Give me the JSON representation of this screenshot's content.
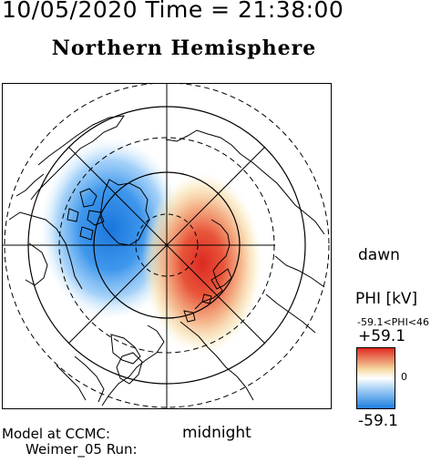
{
  "header": {
    "date_time": "10/05/2020 Time = 21:38:00",
    "title": "Northern Hemisphere"
  },
  "labels": {
    "dawn": "dawn",
    "midnight": "midnight",
    "model_line1": "Model at CCMC:",
    "model_line2": "Weimer_05 Run:"
  },
  "colorbar": {
    "title": "PHI [kV]",
    "range_text": "-59.1<PHI<46",
    "max_label": "+59.1",
    "mid_label": "0",
    "min_label": "-59.1",
    "colors": {
      "negative": "#1e7fe0",
      "zero": "#ffffff",
      "positive": "#e02a20",
      "mid_positive": "#f5d9a0"
    }
  },
  "map": {
    "projection": "polar",
    "hemisphere": "north",
    "potential_cells": [
      {
        "sign": "negative",
        "peak_kv": -59.1
      },
      {
        "sign": "positive",
        "peak_kv": 46
      }
    ]
  }
}
